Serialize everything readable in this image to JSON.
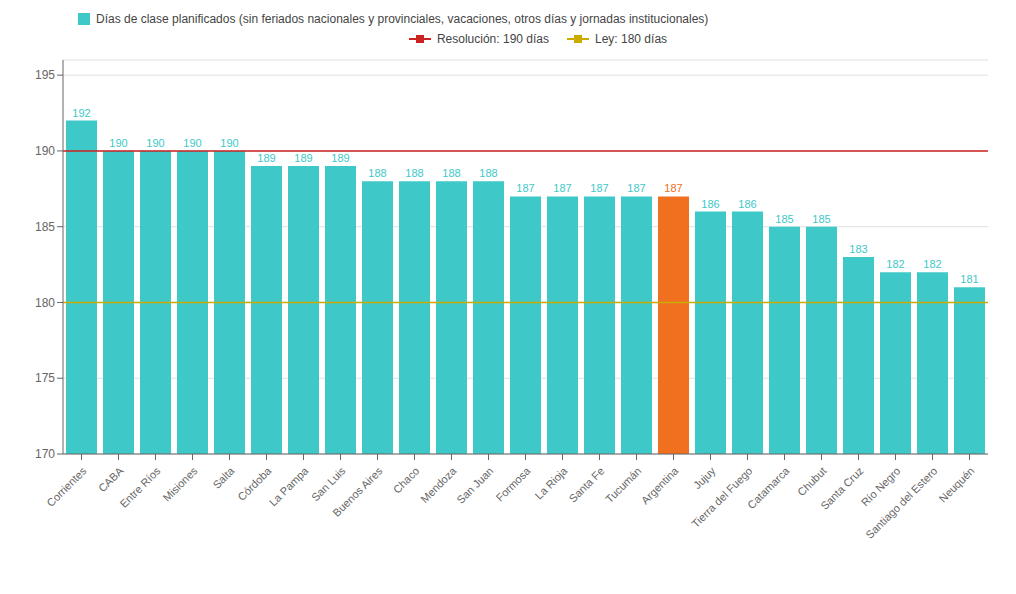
{
  "chart_data": {
    "type": "bar",
    "categories": [
      "Corrientes",
      "CABA",
      "Entre Ríos",
      "Misiones",
      "Salta",
      "Córdoba",
      "La Pampa",
      "San Luis",
      "Buenos Aires",
      "Chaco",
      "Mendoza",
      "San Juan",
      "Formosa",
      "La Rioja",
      "Santa Fe",
      "Tucumán",
      "Argentina",
      "Jujuy",
      "Tierra del Fuego",
      "Catamarca",
      "Chubut",
      "Santa Cruz",
      "Río Negro",
      "Santiago del Estero",
      "Neuquén"
    ],
    "series": [
      {
        "name": "Días de clase planificados (sin feriados nacionales y provinciales, vacaciones, otros días y jornadas institucionales)",
        "color": "#3ec8c8",
        "colors": [
          "#3ec8c8",
          "#3ec8c8",
          "#3ec8c8",
          "#3ec8c8",
          "#3ec8c8",
          "#3ec8c8",
          "#3ec8c8",
          "#3ec8c8",
          "#3ec8c8",
          "#3ec8c8",
          "#3ec8c8",
          "#3ec8c8",
          "#3ec8c8",
          "#3ec8c8",
          "#3ec8c8",
          "#3ec8c8",
          "#f07020",
          "#3ec8c8",
          "#3ec8c8",
          "#3ec8c8",
          "#3ec8c8",
          "#3ec8c8",
          "#3ec8c8",
          "#3ec8c8",
          "#3ec8c8"
        ],
        "values": [
          192,
          190,
          190,
          190,
          190,
          189,
          189,
          189,
          188,
          188,
          188,
          188,
          187,
          187,
          187,
          187,
          187,
          186,
          186,
          185,
          185,
          183,
          182,
          182,
          181
        ]
      }
    ],
    "reference_lines": [
      {
        "name": "Resolución: 190 días",
        "value": 190,
        "color": "#cc2222"
      },
      {
        "name": "Ley: 180 días",
        "value": 180,
        "color": "#ccaa00"
      }
    ],
    "ylim": [
      170,
      196
    ],
    "yticks": [
      170,
      175,
      180,
      185,
      190,
      195
    ],
    "grid": true,
    "data_labels": true,
    "legend": "top"
  }
}
